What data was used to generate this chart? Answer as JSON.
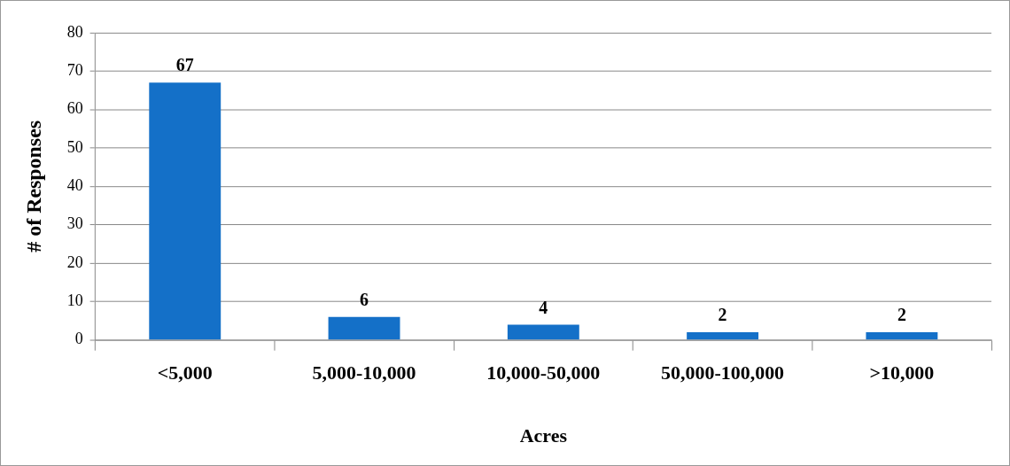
{
  "chart_data": {
    "type": "bar",
    "xlabel": "Acres",
    "ylabel": "# of Responses",
    "categories": [
      "<5,000",
      "5,000-10,000",
      "10,000-50,000",
      "50,000-100,000",
      ">10,000"
    ],
    "values": [
      67,
      6,
      4,
      2,
      2
    ],
    "color": "#1470c8",
    "ylim": [
      0,
      80
    ],
    "yticks": [
      0,
      10,
      20,
      30,
      40,
      50,
      60,
      70,
      80
    ],
    "grid": "y",
    "data_labels": true,
    "legend": false
  }
}
